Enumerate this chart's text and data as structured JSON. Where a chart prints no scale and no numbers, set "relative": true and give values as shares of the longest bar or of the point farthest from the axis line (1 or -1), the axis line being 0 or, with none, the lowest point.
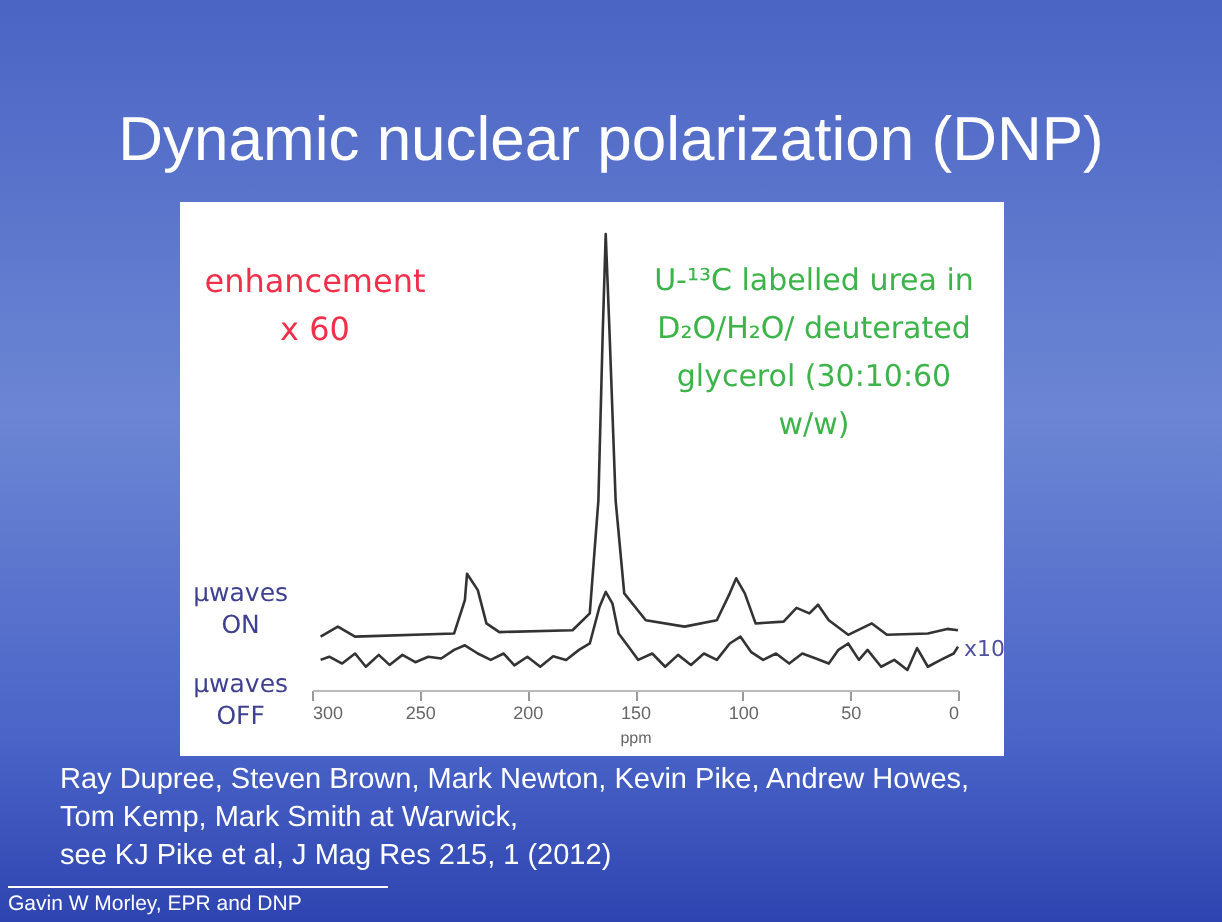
{
  "chart_data": {
    "type": "line",
    "title": "Dynamic nuclear polarization (DNP)",
    "xlabel": "ppm",
    "relative": true,
    "grid": false,
    "xlim": [
      300,
      0
    ],
    "xticks": [
      300,
      250,
      200,
      150,
      100,
      50,
      0
    ],
    "annotations": [
      "enhancement x 60",
      "U-¹³C labelled urea in D₂O/H₂O/ deuterated glycerol (30:10:60 w/w)",
      "x10",
      "Ray Dupree, Steven Brown, Mark Newton, Kevin Pike, Andrew Howes, Tom Kemp, Mark Smith at Warwick,",
      "see KJ Pike et al, J Mag Res 215, 1 (2012)",
      "Gavin W Morley, EPR and DNP"
    ],
    "series": [
      {
        "name": "μwaves ON",
        "color": "#333333",
        "x": [
          296,
          288,
          280,
          234,
          229,
          228,
          223,
          219,
          213,
          179,
          171,
          167,
          165,
          163.6,
          161.8,
          159,
          155,
          145,
          127,
          112,
          106,
          103,
          99,
          94,
          81,
          75,
          69,
          65,
          60,
          51,
          40,
          33,
          14,
          5,
          0
        ],
        "values": [
          0.117,
          0.139,
          0.117,
          0.124,
          0.197,
          0.255,
          0.219,
          0.146,
          0.127,
          0.131,
          0.168,
          0.416,
          0.781,
          1.0,
          0.781,
          0.416,
          0.212,
          0.153,
          0.139,
          0.153,
          0.212,
          0.245,
          0.212,
          0.146,
          0.15,
          0.18,
          0.168,
          0.187,
          0.153,
          0.121,
          0.146,
          0.121,
          0.124,
          0.134,
          0.131
        ]
      },
      {
        "name": "μwaves OFF",
        "color": "#333333",
        "x": [
          296,
          292,
          286,
          280,
          275,
          269,
          264,
          258,
          252,
          246,
          240,
          234,
          229,
          223,
          217,
          211,
          206,
          200,
          194,
          188,
          182,
          176,
          171,
          166.5,
          163.6,
          160.5,
          157.6,
          153,
          148.5,
          142,
          136,
          130,
          124,
          118,
          112,
          106,
          101,
          96,
          90.5,
          84.5,
          78.4,
          72.3,
          66,
          60,
          55.5,
          51,
          46,
          42,
          35.7,
          29.6,
          23.5,
          19,
          14,
          8,
          2,
          0
        ],
        "values": [
          0.066,
          0.073,
          0.058,
          0.08,
          0.051,
          0.077,
          0.055,
          0.077,
          0.061,
          0.073,
          0.069,
          0.088,
          0.098,
          0.08,
          0.066,
          0.08,
          0.054,
          0.073,
          0.051,
          0.074,
          0.066,
          0.088,
          0.102,
          0.182,
          0.215,
          0.19,
          0.124,
          0.095,
          0.066,
          0.08,
          0.051,
          0.077,
          0.055,
          0.08,
          0.066,
          0.102,
          0.117,
          0.083,
          0.066,
          0.08,
          0.058,
          0.08,
          0.069,
          0.058,
          0.088,
          0.102,
          0.066,
          0.088,
          0.051,
          0.066,
          0.044,
          0.092,
          0.051,
          0.066,
          0.08,
          0.095
        ]
      }
    ]
  }
}
